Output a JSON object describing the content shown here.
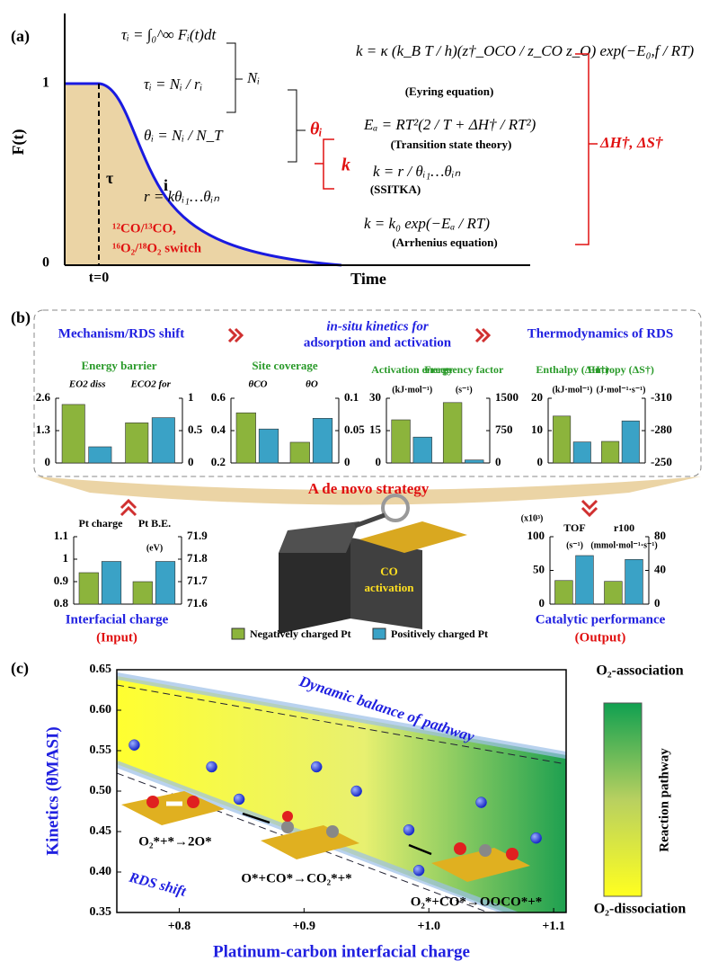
{
  "panel_a": {
    "label": "(a)",
    "y_axis_label": "F(t)",
    "y_ticks": [
      0,
      1
    ],
    "t0": "t=0",
    "x_axis_label": "Time",
    "tau": "τ",
    "i": "i",
    "switch_line1": "¹²CO/¹³CO,",
    "switch_line2": "¹⁶O₂/¹⁸O₂ switch",
    "eq_tau_integral": "τᵢ = ∫₀^∞ Fᵢ(t)dt",
    "eq_tau_ratio": "τᵢ = Nᵢ / rᵢ",
    "n_i": "Nᵢ",
    "eq_theta": "θᵢ = Nᵢ / N_T",
    "theta_i": "θᵢ",
    "k": "k",
    "eq_rate": "r = kθᵢ₁…θᵢₙ",
    "eq_eyring": "k = κ (k_B T / h)(z†_OCO / z_CO z_O) exp(−E₀,f / RT)",
    "eyring": "(Eyring equation)",
    "eq_tst": "Eₐ = RT²(2 / T + ΔH† / RT²)",
    "tst": "(Transition state theory)",
    "eq_ssitka": "k = r / θᵢ₁…θᵢₙ",
    "ssitka": "(SSITKA)",
    "eq_arrhenius": "k = k₀ exp(−Eₐ / RT)",
    "arrhenius": "(Arrhenius equation)",
    "thermo": "ΔH†, ΔS†"
  },
  "panel_b": {
    "label": "(b)",
    "header_1": "Mechanism/RDS shift",
    "header_2_line1": "in-situ kinetics for",
    "header_2_line2": "adsorption and activation",
    "header_3": "Thermodynamics of RDS",
    "strategy": "A de novo strategy",
    "input_title": "Interfacial charge",
    "input_sub": "(Input)",
    "output_title": "Catalytic performance",
    "output_sub": "(Output)",
    "box_line1": "CO",
    "box_line2": "activation",
    "legend": [
      {
        "name": "Negatively charged Pt",
        "color": "#8cb43c"
      },
      {
        "name": "Positively charged Pt",
        "color": "#3aa2c6"
      }
    ]
  },
  "chart_data": [
    {
      "type": "bar",
      "title": "Energy barrier",
      "categories": [
        "EO2 diss",
        "ECO2 for"
      ],
      "category_axes": [
        "y",
        "y2"
      ],
      "ylim": [
        0,
        2.6
      ],
      "yticks": [
        0,
        1.3,
        2.6
      ],
      "y2lim": [
        0,
        1
      ],
      "y2ticks": [
        0,
        0.5,
        1
      ],
      "series": [
        {
          "color": "#8cb43c",
          "values": [
            2.35,
            0.62
          ]
        },
        {
          "color": "#3aa2c6",
          "values": [
            0.65,
            0.7
          ]
        }
      ]
    },
    {
      "type": "bar",
      "title": "Site coverage",
      "categories": [
        "θCO",
        "θO"
      ],
      "category_axes": [
        "y",
        "y2"
      ],
      "ylim": [
        0.2,
        0.6
      ],
      "yticks": [
        0.2,
        0.4,
        0.6
      ],
      "y2lim": [
        0,
        0.1
      ],
      "y2ticks": [
        0,
        0.05,
        0.1
      ],
      "series": [
        {
          "color": "#8cb43c",
          "values": [
            0.51,
            0.032
          ]
        },
        {
          "color": "#3aa2c6",
          "values": [
            0.41,
            0.069
          ]
        }
      ]
    },
    {
      "type": "bar",
      "categories": [
        "Activation energy",
        "Frequency factor"
      ],
      "category_axes": [
        "y",
        "y2"
      ],
      "y_unit": "(kJ·mol⁻¹)",
      "y2_unit": "(s⁻¹)",
      "ylim": [
        0,
        30
      ],
      "yticks": [
        0,
        15,
        30
      ],
      "y2lim": [
        0,
        1500
      ],
      "y2ticks": [
        0,
        750,
        1500
      ],
      "series": [
        {
          "color": "#8cb43c",
          "values": [
            20,
            1400
          ]
        },
        {
          "color": "#3aa2c6",
          "values": [
            12,
            70
          ]
        }
      ]
    },
    {
      "type": "bar",
      "categories": [
        "Enthalpy (ΔH†)",
        "Entropy (ΔS†)"
      ],
      "category_axes": [
        "y",
        "y2"
      ],
      "y_unit": "(kJ·mol⁻¹)",
      "y2_unit": "(J·mol⁻¹·s⁻¹)",
      "ylim": [
        0,
        20
      ],
      "yticks": [
        0,
        10,
        20
      ],
      "y2lim": [
        -250,
        -310
      ],
      "y2ticks": [
        -250,
        -280,
        -310
      ],
      "series": [
        {
          "color": "#8cb43c",
          "values": [
            14.5,
            -270
          ]
        },
        {
          "color": "#3aa2c6",
          "values": [
            6.5,
            -289
          ]
        }
      ]
    },
    {
      "type": "bar",
      "categories": [
        "Pt charge",
        "Pt B.E."
      ],
      "category_axes": [
        "y",
        "y2"
      ],
      "y2_unit": "(eV)",
      "ylim": [
        0.8,
        1.1
      ],
      "yticks": [
        0.8,
        0.9,
        1,
        1.1
      ],
      "y2lim": [
        71.6,
        71.9
      ],
      "y2ticks": [
        71.6,
        71.7,
        71.8,
        71.9
      ],
      "series": [
        {
          "color": "#8cb43c",
          "values": [
            0.94,
            71.7
          ]
        },
        {
          "color": "#3aa2c6",
          "values": [
            0.99,
            71.79
          ]
        }
      ]
    },
    {
      "type": "bar",
      "categories": [
        "TOF",
        "r100"
      ],
      "category_axes": [
        "y",
        "y2"
      ],
      "y_scale": "(x10³)",
      "y_unit": "(s⁻¹)",
      "y2_unit": "(mmol·mol⁻¹·s⁻¹)",
      "ylim": [
        0,
        100
      ],
      "yticks": [
        0,
        50,
        100
      ],
      "y2lim": [
        0,
        80
      ],
      "y2ticks": [
        0,
        40,
        80
      ],
      "series": [
        {
          "color": "#8cb43c",
          "values": [
            35,
            27
          ]
        },
        {
          "color": "#3aa2c6",
          "values": [
            72,
            53
          ]
        }
      ]
    },
    {
      "type": "scatter",
      "x_label": "Platinum-carbon interfacial charge",
      "y_label": "Kinetics (θMASI)",
      "xlim": [
        0.75,
        1.11
      ],
      "xticks": [
        {
          "value": 0.8,
          "label": "+0.8"
        },
        {
          "value": 0.9,
          "label": "+0.9"
        },
        {
          "value": 1.0,
          "label": "+1.0"
        },
        {
          "value": 1.1,
          "label": "+1.1"
        }
      ],
      "ylim": [
        0.35,
        0.65
      ],
      "yticks": [
        0.35,
        {
          "value": 0.4,
          "label": "0.40"
        },
        0.45,
        {
          "value": 0.5,
          "label": "0.50"
        },
        0.55,
        {
          "value": 0.6,
          "label": "0.60"
        },
        0.65
      ],
      "color": "#1a2fe0",
      "x": [
        0.764,
        0.826,
        0.848,
        0.91,
        0.942,
        0.984,
        0.992,
        1.042,
        1.086
      ],
      "values": [
        0.557,
        0.53,
        0.49,
        0.53,
        0.5,
        0.452,
        0.402,
        0.486,
        0.442
      ]
    }
  ],
  "panel_c": {
    "label": "(c)",
    "band_label": "Dynamic balance of pathway",
    "rds_shift": "RDS shift",
    "step_1": "O₂*+*→2O*",
    "step_2": "O*+CO*→CO₂*+*",
    "step_3": "O₂*+CO*→OOCO*+*",
    "top_label": "O₂-association",
    "bottom_label": "O₂-dissociation",
    "colorbar_label": "Reaction pathway"
  }
}
